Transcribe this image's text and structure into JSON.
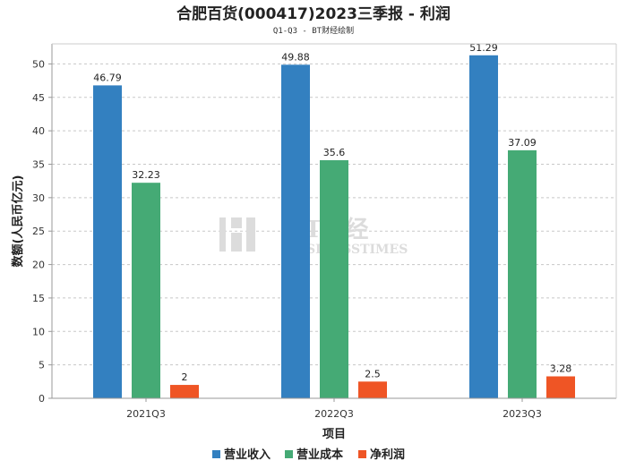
{
  "chart_data": {
    "type": "bar",
    "title": "合肥百货(000417)2023三季报 - 利润",
    "subtitle": "Q1-Q3 - BT财经绘制",
    "xlabel": "项目",
    "ylabel": "数额(人民币亿元)",
    "ylim": [
      0,
      53
    ],
    "yticks": [
      0,
      5,
      10,
      15,
      20,
      25,
      30,
      35,
      40,
      45,
      50
    ],
    "grid": true,
    "legend_position": "bottom",
    "categories": [
      "2021Q3",
      "2022Q3",
      "2023Q3"
    ],
    "series": [
      {
        "name": "营业收入",
        "values": [
          46.79,
          49.88,
          51.29
        ],
        "color": "#3380c0"
      },
      {
        "name": "营业成本",
        "values": [
          32.23,
          35.6,
          37.09
        ],
        "color": "#45aa75"
      },
      {
        "name": "净利润",
        "values": [
          2,
          2.5,
          3.28
        ],
        "color": "#ef5525"
      }
    ]
  },
  "watermark": {
    "brand": "BT财经",
    "sub": "BUSINESSTIMES"
  }
}
